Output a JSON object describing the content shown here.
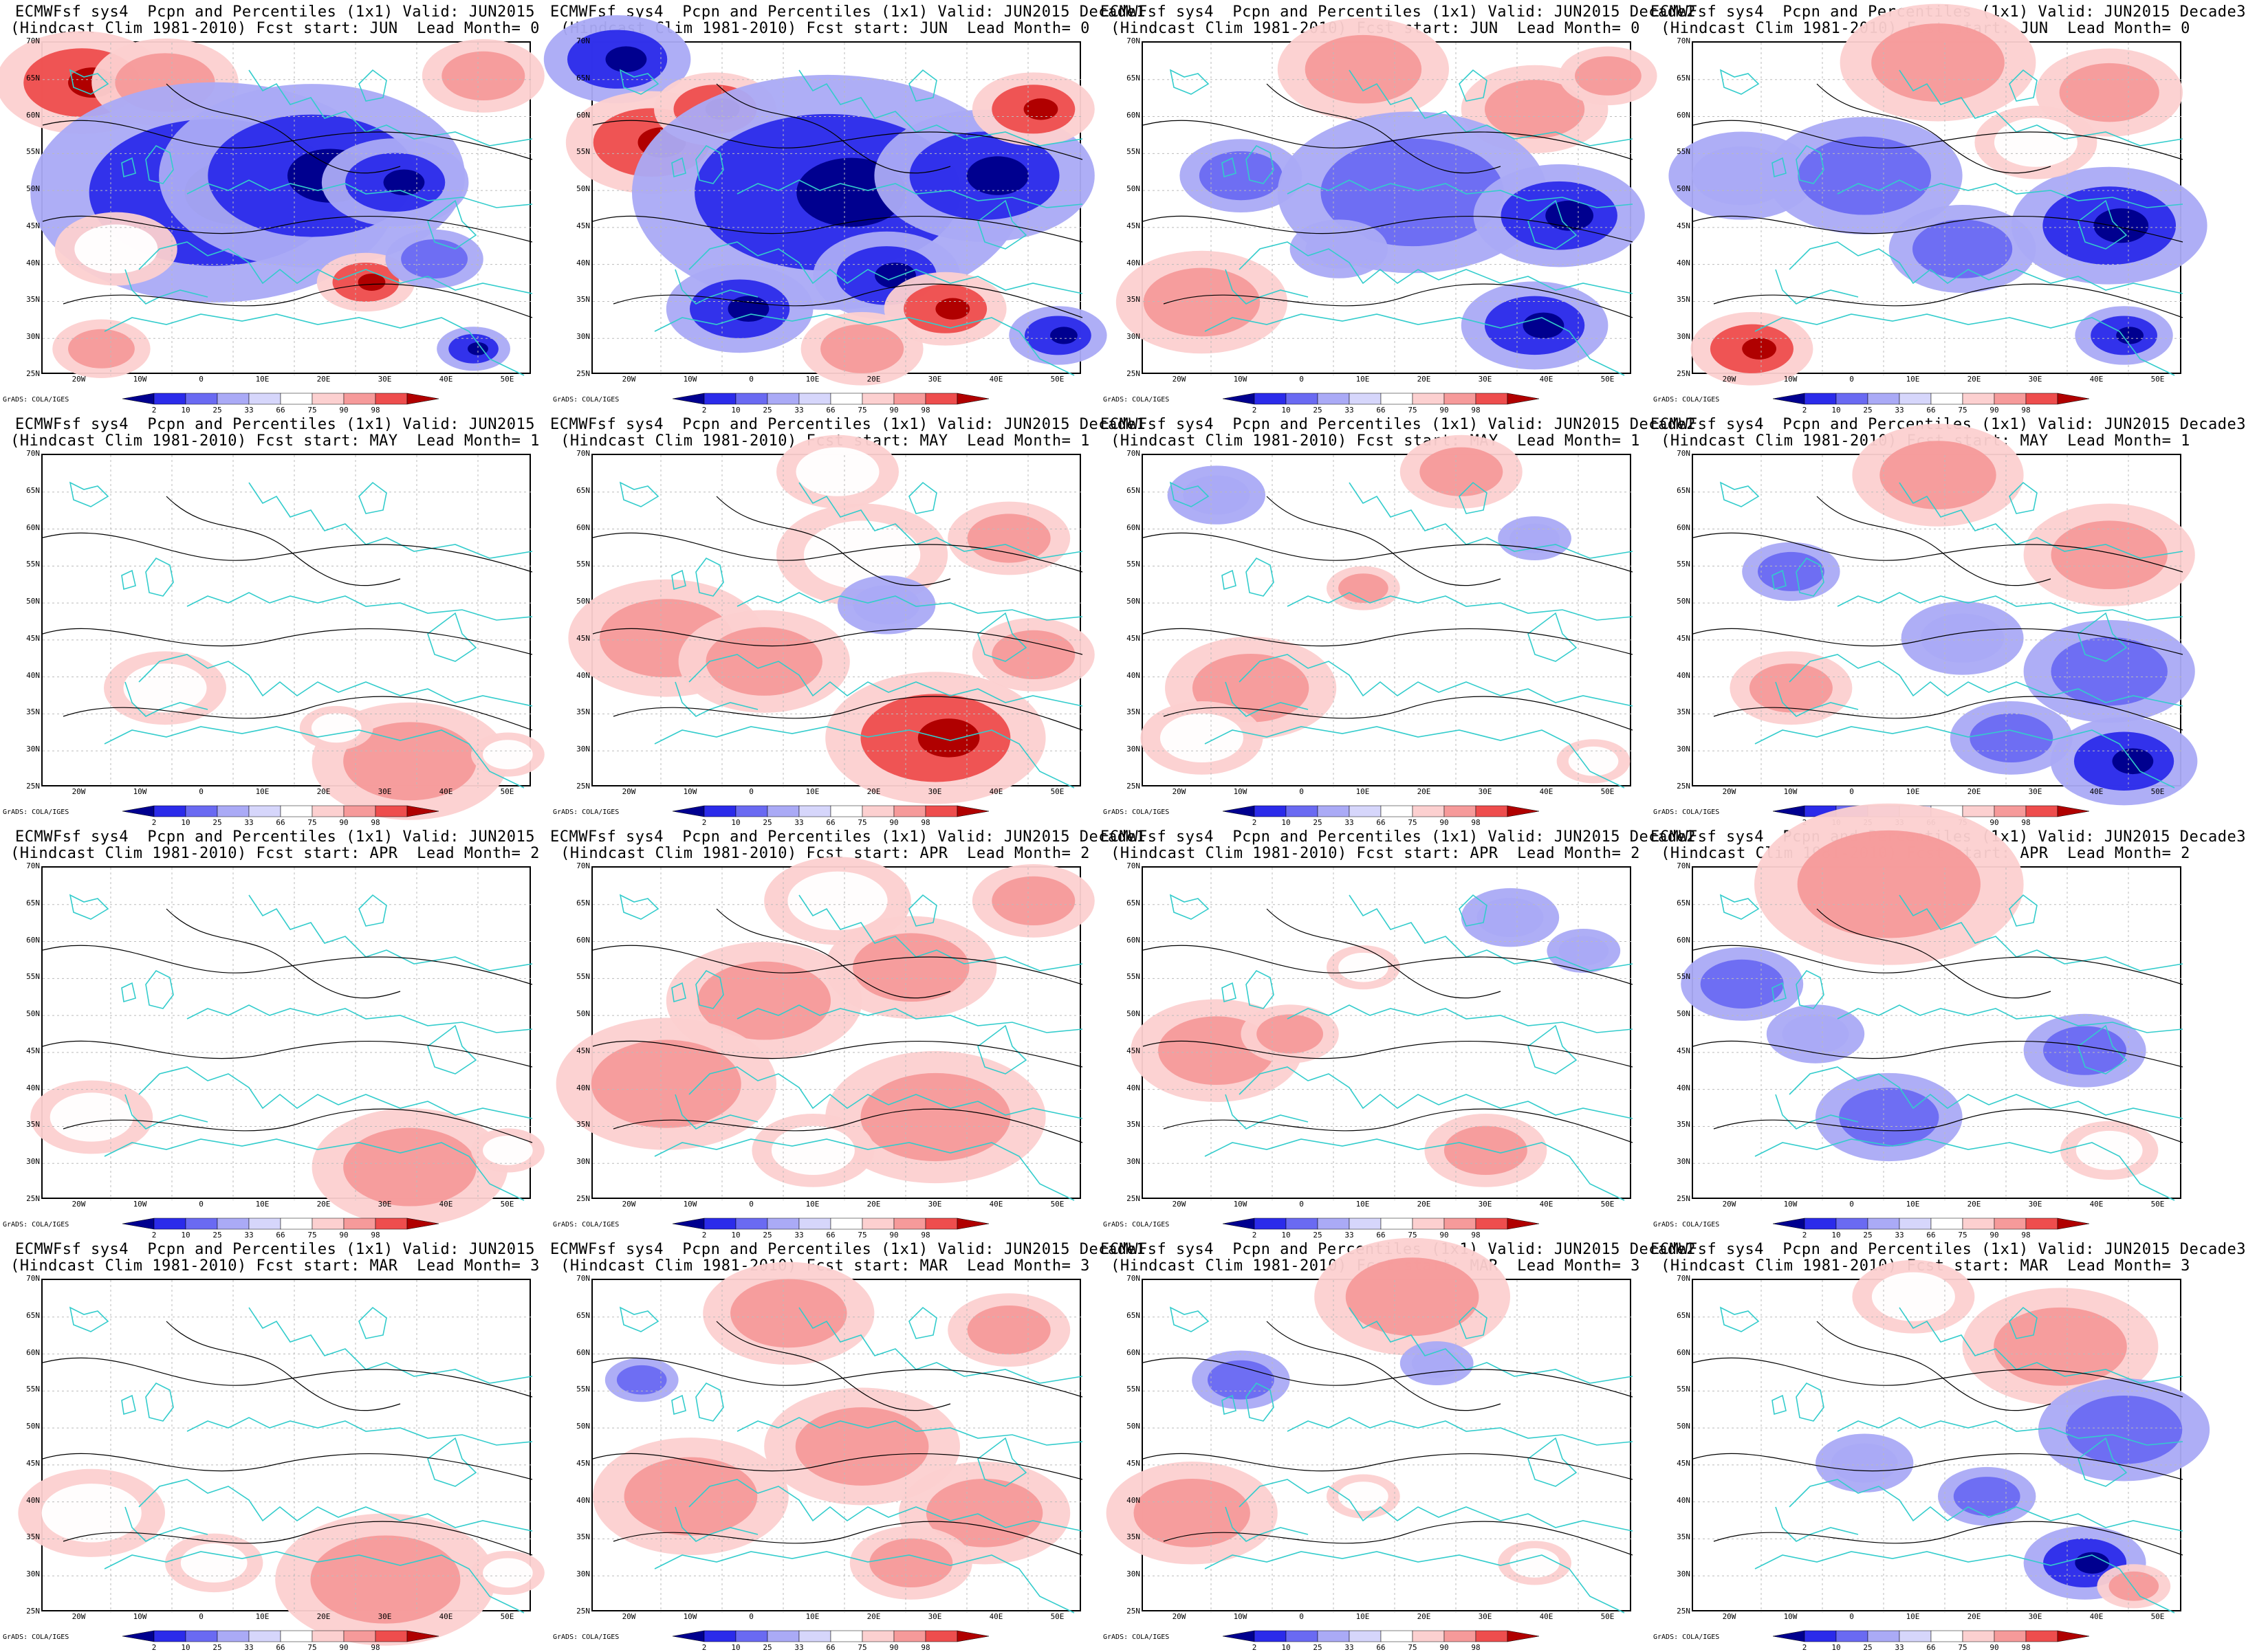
{
  "rows": [
    {
      "fcst_start": "JUN",
      "lead": "0",
      "panels": [
        {
          "title": "ECMWFsf sys4  Pcpn and Percentiles (1x1) Valid: JUN2015",
          "subtitle": "(Hindcast Clim 1981-2010) Fcst start: JUN  Lead Month= 0",
          "anomaly": [
            [
              0.08,
              0.12,
              0.14,
              90
            ],
            [
              0.25,
              0.12,
              0.12,
              82
            ],
            [
              0.35,
              0.45,
              0.3,
              8
            ],
            [
              0.55,
              0.4,
              0.25,
              6
            ],
            [
              0.72,
              0.42,
              0.12,
              5
            ],
            [
              0.66,
              0.72,
              0.08,
              92
            ],
            [
              0.12,
              0.92,
              0.08,
              86
            ],
            [
              0.8,
              0.65,
              0.08,
              12
            ],
            [
              0.88,
              0.92,
              0.06,
              4
            ],
            [
              0.15,
              0.62,
              0.1,
              70
            ],
            [
              0.9,
              0.1,
              0.1,
              80
            ]
          ]
        },
        {
          "title": "ECMWFsf sys4  Pcpn and Percentiles (1x1) Valid: JUN2015 Decade1",
          "subtitle": "(Hindcast Clim 1981-2010) Fcst start: JUN  Lead Month= 0",
          "anomaly": [
            [
              0.05,
              0.05,
              0.12,
              4
            ],
            [
              0.12,
              0.3,
              0.14,
              96
            ],
            [
              0.25,
              0.2,
              0.1,
              94
            ],
            [
              0.48,
              0.45,
              0.32,
              3
            ],
            [
              0.8,
              0.4,
              0.18,
              3
            ],
            [
              0.6,
              0.7,
              0.12,
              2
            ],
            [
              0.3,
              0.8,
              0.12,
              6
            ],
            [
              0.72,
              0.8,
              0.1,
              95
            ],
            [
              0.9,
              0.2,
              0.1,
              92
            ],
            [
              0.55,
              0.92,
              0.1,
              80
            ],
            [
              0.95,
              0.88,
              0.08,
              3
            ]
          ]
        },
        {
          "title": "ECMWFsf sys4  Pcpn and Percentiles (1x1) Valid: JUN2015 Decade2",
          "subtitle": "(Hindcast Clim 1981-2010) Fcst start: JUN  Lead Month= 0",
          "anomaly": [
            [
              0.45,
              0.08,
              0.14,
              88
            ],
            [
              0.8,
              0.2,
              0.12,
              80
            ],
            [
              0.2,
              0.4,
              0.1,
              22
            ],
            [
              0.55,
              0.45,
              0.22,
              10
            ],
            [
              0.85,
              0.52,
              0.14,
              4
            ],
            [
              0.12,
              0.78,
              0.14,
              88
            ],
            [
              0.8,
              0.85,
              0.12,
              3
            ],
            [
              0.4,
              0.62,
              0.08,
              30
            ],
            [
              0.95,
              0.1,
              0.08,
              76
            ]
          ]
        },
        {
          "title": "ECMWFsf sys4  Pcpn and Percentiles (1x1) Valid: JUN2015 Decade3",
          "subtitle": "(Hindcast Clim 1981-2010) Fcst start: JUN  Lead Month= 0",
          "anomaly": [
            [
              0.5,
              0.06,
              0.16,
              84
            ],
            [
              0.85,
              0.15,
              0.12,
              80
            ],
            [
              0.1,
              0.4,
              0.12,
              28
            ],
            [
              0.35,
              0.4,
              0.16,
              14
            ],
            [
              0.85,
              0.55,
              0.16,
              5
            ],
            [
              0.55,
              0.62,
              0.12,
              12
            ],
            [
              0.12,
              0.92,
              0.1,
              90
            ],
            [
              0.88,
              0.88,
              0.08,
              4
            ],
            [
              0.7,
              0.3,
              0.1,
              70
            ]
          ]
        }
      ]
    },
    {
      "fcst_start": "MAY",
      "lead": "1",
      "panels": [
        {
          "title": "ECMWFsf sys4  Pcpn and Percentiles (1x1) Valid: JUN2015",
          "subtitle": "(Hindcast Clim 1981-2010) Fcst start: MAY  Lead Month= 1",
          "anomaly": [
            [
              0.25,
              0.7,
              0.1,
              72
            ],
            [
              0.75,
              0.92,
              0.16,
              80
            ],
            [
              0.95,
              0.9,
              0.06,
              74
            ],
            [
              0.6,
              0.82,
              0.06,
              70
            ]
          ]
        },
        {
          "title": "ECMWFsf sys4  Pcpn and Percentiles (1x1) Valid: JUN2015 Decade1",
          "subtitle": "(Hindcast Clim 1981-2010) Fcst start: MAY  Lead Month= 1",
          "anomaly": [
            [
              0.15,
              0.55,
              0.16,
              82
            ],
            [
              0.35,
              0.62,
              0.14,
              86
            ],
            [
              0.7,
              0.85,
              0.18,
              92
            ],
            [
              0.55,
              0.3,
              0.14,
              74
            ],
            [
              0.85,
              0.25,
              0.1,
              78
            ],
            [
              0.9,
              0.6,
              0.1,
              76
            ],
            [
              0.5,
              0.05,
              0.1,
              72
            ],
            [
              0.6,
              0.45,
              0.08,
              28
            ]
          ]
        },
        {
          "title": "ECMWFsf sys4  Pcpn and Percentiles (1x1) Valid: JUN2015 Decade2",
          "subtitle": "(Hindcast Clim 1981-2010) Fcst start: MAY  Lead Month= 1",
          "anomaly": [
            [
              0.22,
              0.7,
              0.14,
              80
            ],
            [
              0.12,
              0.85,
              0.1,
              74
            ],
            [
              0.65,
              0.05,
              0.1,
              76
            ],
            [
              0.15,
              0.12,
              0.08,
              28
            ],
            [
              0.45,
              0.4,
              0.06,
              82
            ],
            [
              0.8,
              0.25,
              0.06,
              28
            ],
            [
              0.92,
              0.92,
              0.06,
              72
            ]
          ]
        },
        {
          "title": "ECMWFsf sys4  Pcpn and Percentiles (1x1) Valid: JUN2015 Decade3",
          "subtitle": "(Hindcast Clim 1981-2010) Fcst start: MAY  Lead Month= 1",
          "anomaly": [
            [
              0.5,
              0.06,
              0.14,
              80
            ],
            [
              0.85,
              0.3,
              0.14,
              84
            ],
            [
              0.2,
              0.35,
              0.08,
              14
            ],
            [
              0.85,
              0.65,
              0.14,
              16
            ],
            [
              0.65,
              0.85,
              0.1,
              20
            ],
            [
              0.88,
              0.92,
              0.12,
              4
            ],
            [
              0.2,
              0.7,
              0.1,
              76
            ],
            [
              0.55,
              0.55,
              0.1,
              28
            ]
          ]
        }
      ]
    },
    {
      "fcst_start": "APR",
      "lead": "2",
      "panels": [
        {
          "title": "ECMWFsf sys4  Pcpn and Percentiles (1x1) Valid: JUN2015",
          "subtitle": "(Hindcast Clim 1981-2010) Fcst start: APR  Lead Month= 2",
          "anomaly": [
            [
              0.1,
              0.75,
              0.1,
              72
            ],
            [
              0.75,
              0.9,
              0.16,
              82
            ],
            [
              0.95,
              0.85,
              0.06,
              74
            ]
          ]
        },
        {
          "title": "ECMWFsf sys4  Pcpn and Percentiles (1x1) Valid: JUN2015 Decade1",
          "subtitle": "(Hindcast Clim 1981-2010) Fcst start: APR  Lead Month= 2",
          "anomaly": [
            [
              0.35,
              0.4,
              0.16,
              88
            ],
            [
              0.65,
              0.3,
              0.14,
              86
            ],
            [
              0.15,
              0.65,
              0.18,
              84
            ],
            [
              0.7,
              0.75,
              0.18,
              84
            ],
            [
              0.5,
              0.1,
              0.12,
              74
            ],
            [
              0.9,
              0.1,
              0.1,
              76
            ],
            [
              0.45,
              0.85,
              0.1,
              74
            ]
          ]
        },
        {
          "title": "ECMWFsf sys4  Pcpn and Percentiles (1x1) Valid: JUN2015 Decade2",
          "subtitle": "(Hindcast Clim 1981-2010) Fcst start: APR  Lead Month= 2",
          "anomaly": [
            [
              0.15,
              0.55,
              0.14,
              76
            ],
            [
              0.3,
              0.5,
              0.08,
              84
            ],
            [
              0.7,
              0.85,
              0.1,
              78
            ],
            [
              0.75,
              0.15,
              0.08,
              26
            ],
            [
              0.45,
              0.3,
              0.06,
              74
            ],
            [
              0.9,
              0.25,
              0.06,
              28
            ]
          ]
        },
        {
          "title": "ECMWFsf sys4  Pcpn and Percentiles (1x1) Valid: JUN2015 Decade3",
          "subtitle": "(Hindcast Clim 1981-2010) Fcst start: APR  Lead Month= 2",
          "anomaly": [
            [
              0.4,
              0.05,
              0.22,
              86
            ],
            [
              0.1,
              0.35,
              0.1,
              10
            ],
            [
              0.4,
              0.75,
              0.12,
              18
            ],
            [
              0.8,
              0.55,
              0.1,
              20
            ],
            [
              0.25,
              0.5,
              0.08,
              28
            ],
            [
              0.85,
              0.85,
              0.08,
              74
            ]
          ]
        }
      ]
    },
    {
      "fcst_start": "MAR",
      "lead": "3",
      "panels": [
        {
          "title": "ECMWFsf sys4  Pcpn and Percentiles (1x1) Valid: JUN2015",
          "subtitle": "(Hindcast Clim 1981-2010) Fcst start: MAR  Lead Month= 3",
          "anomaly": [
            [
              0.1,
              0.7,
              0.12,
              74
            ],
            [
              0.7,
              0.9,
              0.18,
              78
            ],
            [
              0.95,
              0.88,
              0.06,
              72
            ],
            [
              0.35,
              0.85,
              0.08,
              74
            ]
          ]
        },
        {
          "title": "ECMWFsf sys4  Pcpn and Percentiles (1x1) Valid: JUN2015 Decade1",
          "subtitle": "(Hindcast Clim 1981-2010) Fcst start: MAR  Lead Month= 3",
          "anomaly": [
            [
              0.2,
              0.65,
              0.16,
              86
            ],
            [
              0.55,
              0.5,
              0.16,
              82
            ],
            [
              0.8,
              0.7,
              0.14,
              82
            ],
            [
              0.4,
              0.1,
              0.14,
              76
            ],
            [
              0.85,
              0.15,
              0.1,
              76
            ],
            [
              0.1,
              0.3,
              0.06,
              22
            ],
            [
              0.65,
              0.85,
              0.1,
              80
            ]
          ]
        },
        {
          "title": "ECMWFsf sys4  Pcpn and Percentiles (1x1) Valid: JUN2015 Decade2",
          "subtitle": "(Hindcast Clim 1981-2010) Fcst start: MAR  Lead Month= 3",
          "anomaly": [
            [
              0.55,
              0.05,
              0.16,
              82
            ],
            [
              0.1,
              0.7,
              0.14,
              84
            ],
            [
              0.2,
              0.3,
              0.08,
              22
            ],
            [
              0.6,
              0.25,
              0.06,
              26
            ],
            [
              0.45,
              0.65,
              0.06,
              74
            ],
            [
              0.8,
              0.85,
              0.06,
              74
            ]
          ]
        },
        {
          "title": "ECMWFsf sys4  Pcpn and Percentiles (1x1) Valid: JUN2015 Decade3",
          "subtitle": "(Hindcast Clim 1981-2010) Fcst start: MAR  Lead Month= 3",
          "anomaly": [
            [
              0.75,
              0.2,
              0.16,
              80
            ],
            [
              0.88,
              0.45,
              0.14,
              18
            ],
            [
              0.8,
              0.85,
              0.1,
              6
            ],
            [
              0.6,
              0.65,
              0.08,
              24
            ],
            [
              0.45,
              0.05,
              0.1,
              74
            ],
            [
              0.35,
              0.55,
              0.08,
              28
            ],
            [
              0.9,
              0.92,
              0.06,
              76
            ]
          ]
        }
      ]
    }
  ],
  "axes": {
    "lat_labels": [
      "70N",
      "65N",
      "60N",
      "55N",
      "50N",
      "45N",
      "40N",
      "35N",
      "30N",
      "25N"
    ],
    "lon_labels": [
      "20W",
      "10W",
      "0",
      "10E",
      "20E",
      "30E",
      "40E",
      "50E"
    ]
  },
  "colorbar": {
    "labels": [
      "2",
      "10",
      "25",
      "33",
      "66",
      "75",
      "90",
      "98"
    ],
    "colors": [
      "#00008f",
      "#2b2bea",
      "#6a6af2",
      "#aaaaf6",
      "#d6d6fb",
      "#ffffff",
      "#fcd0d0",
      "#f69a9a",
      "#ee4d4d",
      "#b00000"
    ]
  },
  "credit": "GrADS: COLA/IGES",
  "colors": {
    "coast": "#33cccc",
    "contour": "#000000"
  }
}
